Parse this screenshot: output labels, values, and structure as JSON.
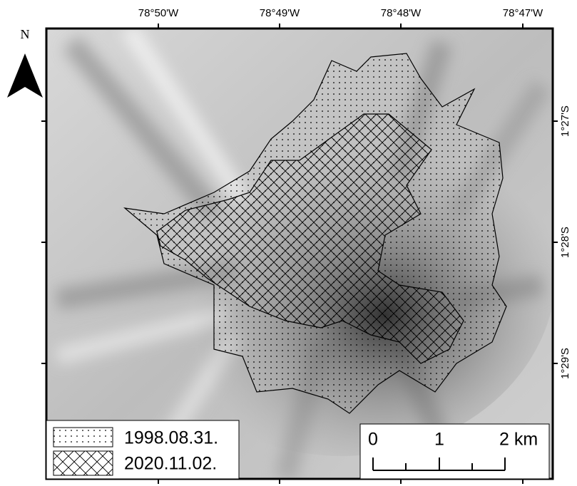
{
  "map": {
    "north_label": "N",
    "longitude_labels": [
      "78°50'W",
      "78°49'W",
      "78°48'W",
      "78°47'W"
    ],
    "latitude_labels": [
      "1°27'S",
      "1°28'S",
      "1°29'S"
    ],
    "legend": [
      {
        "label": "1998.08.31."
      },
      {
        "label": "2020.11.02."
      }
    ],
    "scale_bar": {
      "labels": [
        "0",
        "1",
        "2 km"
      ]
    }
  }
}
